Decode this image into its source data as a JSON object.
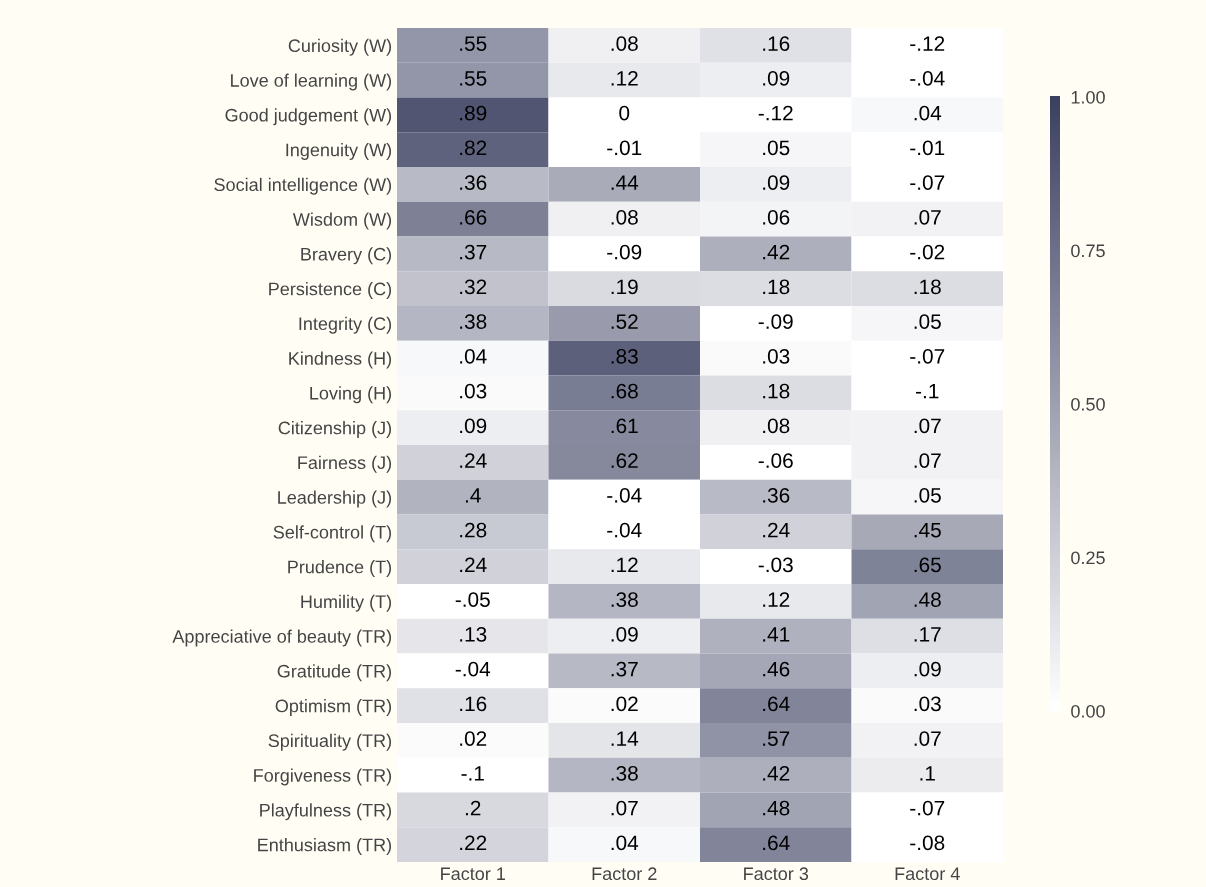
{
  "chart_data": {
    "type": "heatmap",
    "categories": [
      "Factor 1",
      "Factor 2",
      "Factor 3",
      "Factor 4"
    ],
    "y_categories": [
      "Curiosity (W)",
      "Love of learning (W)",
      "Good judgement (W)",
      "Ingenuity (W)",
      "Social intelligence (W)",
      "Wisdom (W)",
      "Bravery (C)",
      "Persistence (C)",
      "Integrity (C)",
      "Kindness (H)",
      "Loving (H)",
      "Citizenship (J)",
      "Fairness (J)",
      "Leadership (J)",
      "Self-control (T)",
      "Prudence (T)",
      "Humility (T)",
      "Appreciative of beauty (TR)",
      "Gratitude (TR)",
      "Optimism (TR)",
      "Spirituality (TR)",
      "Forgiveness (TR)",
      "Playfulness (TR)",
      "Enthusiasm (TR)"
    ],
    "cells": [
      [
        0.55,
        0.08,
        0.16,
        -0.12
      ],
      [
        0.55,
        0.12,
        0.09,
        -0.04
      ],
      [
        0.89,
        0,
        -0.12,
        0.04
      ],
      [
        0.82,
        -0.01,
        0.05,
        -0.01
      ],
      [
        0.36,
        0.44,
        0.09,
        -0.07
      ],
      [
        0.66,
        0.08,
        0.06,
        0.07
      ],
      [
        0.37,
        -0.09,
        0.42,
        -0.02
      ],
      [
        0.32,
        0.19,
        0.18,
        0.18
      ],
      [
        0.38,
        0.52,
        -0.09,
        0.05
      ],
      [
        0.04,
        0.83,
        0.03,
        -0.07
      ],
      [
        0.03,
        0.68,
        0.18,
        -0.1
      ],
      [
        0.09,
        0.61,
        0.08,
        0.07
      ],
      [
        0.24,
        0.62,
        -0.06,
        0.07
      ],
      [
        0.4,
        -0.04,
        0.36,
        0.05
      ],
      [
        0.28,
        -0.04,
        0.24,
        0.45
      ],
      [
        0.24,
        0.12,
        -0.03,
        0.65
      ],
      [
        -0.05,
        0.38,
        0.12,
        0.48
      ],
      [
        0.13,
        0.09,
        0.41,
        0.17
      ],
      [
        -0.04,
        0.37,
        0.46,
        0.09
      ],
      [
        0.16,
        0.02,
        0.64,
        0.03
      ],
      [
        0.02,
        0.14,
        0.57,
        0.07
      ],
      [
        -0.1,
        0.38,
        0.42,
        0.1
      ],
      [
        0.2,
        0.07,
        0.48,
        -0.07
      ],
      [
        0.22,
        0.04,
        0.64,
        -0.08
      ]
    ],
    "cell_labels": [
      [
        ".55",
        ".08",
        ".16",
        "-.12"
      ],
      [
        ".55",
        ".12",
        ".09",
        "-.04"
      ],
      [
        ".89",
        "0",
        "-.12",
        ".04"
      ],
      [
        ".82",
        "-.01",
        ".05",
        "-.01"
      ],
      [
        ".36",
        ".44",
        ".09",
        "-.07"
      ],
      [
        ".66",
        ".08",
        ".06",
        ".07"
      ],
      [
        ".37",
        "-.09",
        ".42",
        "-.02"
      ],
      [
        ".32",
        ".19",
        ".18",
        ".18"
      ],
      [
        ".38",
        ".52",
        "-.09",
        ".05"
      ],
      [
        ".04",
        ".83",
        ".03",
        "-.07"
      ],
      [
        ".03",
        ".68",
        ".18",
        "-.1"
      ],
      [
        ".09",
        ".61",
        ".08",
        ".07"
      ],
      [
        ".24",
        ".62",
        "-.06",
        ".07"
      ],
      [
        ".4",
        "-.04",
        ".36",
        ".05"
      ],
      [
        ".28",
        "-.04",
        ".24",
        ".45"
      ],
      [
        ".24",
        ".12",
        "-.03",
        ".65"
      ],
      [
        "-.05",
        ".38",
        ".12",
        ".48"
      ],
      [
        ".13",
        ".09",
        ".41",
        ".17"
      ],
      [
        "-.04",
        ".37",
        ".46",
        ".09"
      ],
      [
        ".16",
        ".02",
        ".64",
        ".03"
      ],
      [
        ".02",
        ".14",
        ".57",
        ".07"
      ],
      [
        "-.1",
        ".38",
        ".42",
        ".1"
      ],
      [
        ".2",
        ".07",
        ".48",
        "-.07"
      ],
      [
        ".22",
        ".04",
        ".64",
        "-.08"
      ]
    ],
    "colors": [
      "#ffffff",
      "#3b4060"
    ],
    "clim": [
      0,
      1
    ],
    "cticks": [
      {
        "value": 0,
        "label": "0.00"
      },
      {
        "value": 0.25,
        "label": "0.25"
      },
      {
        "value": 0.5,
        "label": "0.50"
      },
      {
        "value": 0.75,
        "label": "0.75"
      },
      {
        "value": 1,
        "label": "1.00"
      }
    ]
  }
}
